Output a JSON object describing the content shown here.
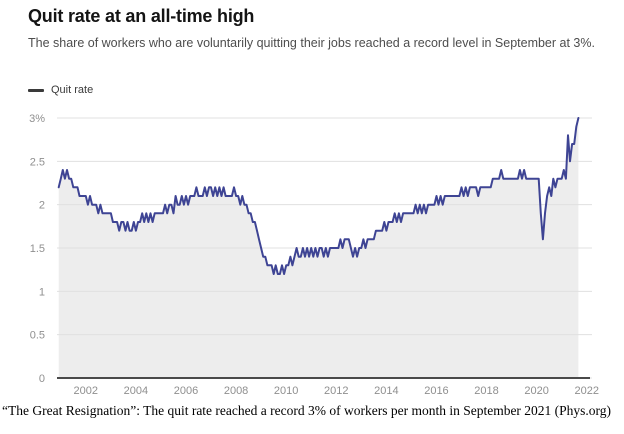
{
  "header": {
    "title": "Quit rate at an all-time high",
    "subtitle": "The share of workers who are voluntarily quitting their jobs reached a record level in September at 3%.",
    "legend_label": "Quit rate"
  },
  "caption": "“The Great Resignation”: The quit rate reached a record 3% of workers per month in September 2021 (Phys.org)",
  "chart_data": {
    "type": "area",
    "title": "Quit rate at an all-time high",
    "series_name": "Quit rate",
    "frequency": "monthly",
    "start_period": "2000-12",
    "end_period": "2021-09",
    "x_start_year": 2000.9167,
    "x_step_years": 0.0833333,
    "values": [
      2.2,
      2.3,
      2.4,
      2.3,
      2.4,
      2.3,
      2.3,
      2.2,
      2.2,
      2.2,
      2.1,
      2.1,
      2.1,
      2.1,
      2.0,
      2.1,
      2.0,
      2.0,
      2.0,
      1.9,
      2.0,
      1.9,
      1.9,
      1.9,
      1.9,
      1.9,
      1.8,
      1.8,
      1.8,
      1.7,
      1.8,
      1.8,
      1.7,
      1.8,
      1.7,
      1.7,
      1.8,
      1.7,
      1.8,
      1.8,
      1.9,
      1.8,
      1.9,
      1.8,
      1.9,
      1.8,
      1.9,
      1.9,
      1.9,
      1.9,
      1.9,
      2.0,
      1.9,
      2.0,
      2.0,
      1.9,
      2.1,
      2.0,
      2.0,
      2.1,
      2.0,
      2.1,
      2.0,
      2.1,
      2.1,
      2.1,
      2.2,
      2.1,
      2.1,
      2.1,
      2.2,
      2.1,
      2.2,
      2.2,
      2.1,
      2.2,
      2.1,
      2.2,
      2.1,
      2.2,
      2.1,
      2.1,
      2.1,
      2.1,
      2.2,
      2.1,
      2.1,
      2.0,
      2.1,
      2.0,
      2.0,
      1.9,
      1.9,
      1.8,
      1.8,
      1.7,
      1.6,
      1.5,
      1.4,
      1.4,
      1.3,
      1.3,
      1.3,
      1.2,
      1.3,
      1.2,
      1.2,
      1.3,
      1.2,
      1.3,
      1.3,
      1.4,
      1.3,
      1.4,
      1.5,
      1.4,
      1.4,
      1.5,
      1.4,
      1.5,
      1.4,
      1.5,
      1.4,
      1.5,
      1.4,
      1.5,
      1.5,
      1.4,
      1.5,
      1.4,
      1.5,
      1.5,
      1.5,
      1.5,
      1.5,
      1.6,
      1.5,
      1.6,
      1.6,
      1.6,
      1.5,
      1.4,
      1.5,
      1.4,
      1.5,
      1.5,
      1.6,
      1.5,
      1.6,
      1.6,
      1.6,
      1.6,
      1.7,
      1.7,
      1.7,
      1.7,
      1.8,
      1.7,
      1.8,
      1.8,
      1.8,
      1.9,
      1.8,
      1.9,
      1.8,
      1.9,
      1.9,
      1.9,
      1.9,
      1.9,
      1.9,
      2.0,
      1.9,
      2.0,
      1.9,
      2.0,
      1.9,
      2.0,
      2.0,
      2.0,
      2.0,
      2.1,
      2.0,
      2.1,
      2.0,
      2.1,
      2.1,
      2.1,
      2.1,
      2.1,
      2.1,
      2.1,
      2.1,
      2.2,
      2.1,
      2.2,
      2.1,
      2.2,
      2.2,
      2.2,
      2.2,
      2.1,
      2.2,
      2.2,
      2.2,
      2.2,
      2.2,
      2.2,
      2.3,
      2.3,
      2.3,
      2.3,
      2.4,
      2.3,
      2.3,
      2.3,
      2.3,
      2.3,
      2.3,
      2.3,
      2.3,
      2.4,
      2.3,
      2.4,
      2.3,
      2.3,
      2.3,
      2.3,
      2.3,
      2.3,
      2.3,
      1.9,
      1.6,
      1.9,
      2.1,
      2.2,
      2.1,
      2.3,
      2.2,
      2.3,
      2.3,
      2.3,
      2.4,
      2.3,
      2.8,
      2.5,
      2.7,
      2.7,
      2.9,
      3.0
    ],
    "y_ticks": [
      {
        "value": 0,
        "label": "0"
      },
      {
        "value": 0.5,
        "label": "0.5"
      },
      {
        "value": 1,
        "label": "1"
      },
      {
        "value": 1.5,
        "label": "1.5"
      },
      {
        "value": 2,
        "label": "2"
      },
      {
        "value": 2.5,
        "label": "2.5"
      },
      {
        "value": 3,
        "label": "3%"
      }
    ],
    "x_ticks": [
      {
        "year": 2002,
        "label": "2002"
      },
      {
        "year": 2004,
        "label": "2004"
      },
      {
        "year": 2006,
        "label": "2006"
      },
      {
        "year": 2008,
        "label": "2008"
      },
      {
        "year": 2010,
        "label": "2010"
      },
      {
        "year": 2012,
        "label": "2012"
      },
      {
        "year": 2014,
        "label": "2014"
      },
      {
        "year": 2016,
        "label": "2016"
      },
      {
        "year": 2018,
        "label": "2018"
      },
      {
        "year": 2020,
        "label": "2020"
      },
      {
        "year": 2022,
        "label": "2022"
      }
    ],
    "ylim": [
      0,
      3
    ],
    "xlim": [
      2000.85,
      2022.21
    ],
    "grid": true,
    "legend_position": "top-left",
    "line_color": "#3e4494",
    "area_color": "#ededed",
    "grid_color": "#e0e0e0",
    "baseline_color": "#4a4a4a",
    "tick_label_color": "#8f8f8f"
  }
}
